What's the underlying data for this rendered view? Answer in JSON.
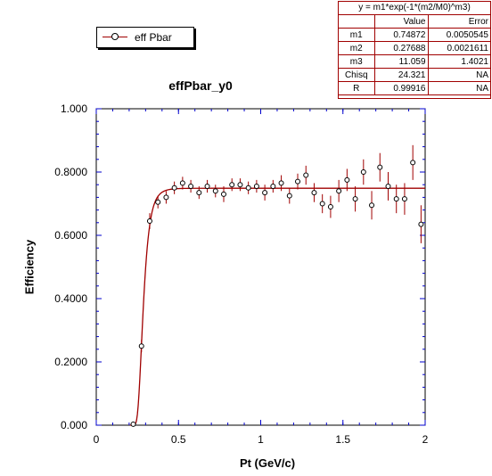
{
  "legend": {
    "label": "eff Pbar"
  },
  "fit": {
    "formula": "y =  m1*exp(-1*(m2/M0)^m3)",
    "headers": [
      "",
      "Value",
      "Error"
    ],
    "rows": [
      [
        "m1",
        "0.74872",
        "0.0050545"
      ],
      [
        "m2",
        "0.27688",
        "0.0021611"
      ],
      [
        "m3",
        "11.059",
        "1.4021"
      ],
      [
        "Chisq",
        "24.321",
        "NA"
      ],
      [
        "R",
        "0.99916",
        "NA"
      ]
    ],
    "m1": 0.74872,
    "m2": 0.27688,
    "m3": 11.059
  },
  "colors": {
    "fit_line": "#a00000",
    "error_bar": "#a00000",
    "marker": "#000000",
    "axis_ticks": "#0000cc"
  },
  "chart_data": {
    "type": "scatter",
    "title": "effPbar_y0",
    "xlabel": "Pt (GeV/c)",
    "ylabel": "Efficiency",
    "xlim": [
      0,
      2
    ],
    "ylim": [
      0,
      1
    ],
    "xticks": [
      "0",
      "0.5",
      "1",
      "1.5",
      "2"
    ],
    "yticks": [
      "0.000",
      "0.2000",
      "0.4000",
      "0.6000",
      "0.8000",
      "1.000"
    ],
    "grid": false,
    "legend_position": "top-left",
    "series": [
      {
        "name": "eff Pbar",
        "x": [
          0.225,
          0.275,
          0.325,
          0.375,
          0.425,
          0.475,
          0.525,
          0.575,
          0.625,
          0.675,
          0.725,
          0.775,
          0.825,
          0.875,
          0.925,
          0.975,
          1.025,
          1.075,
          1.125,
          1.175,
          1.225,
          1.275,
          1.325,
          1.375,
          1.425,
          1.475,
          1.525,
          1.575,
          1.625,
          1.675,
          1.725,
          1.775,
          1.825,
          1.875,
          1.925,
          1.975
        ],
        "y": [
          0.003,
          0.25,
          0.645,
          0.705,
          0.72,
          0.75,
          0.765,
          0.755,
          0.735,
          0.755,
          0.74,
          0.73,
          0.76,
          0.76,
          0.75,
          0.755,
          0.735,
          0.755,
          0.765,
          0.725,
          0.77,
          0.79,
          0.735,
          0.7,
          0.69,
          0.74,
          0.775,
          0.715,
          0.8,
          0.695,
          0.815,
          0.755,
          0.715,
          0.715,
          0.83,
          0.635
        ],
        "yerr": [
          0.002,
          0.02,
          0.025,
          0.02,
          0.02,
          0.02,
          0.02,
          0.02,
          0.02,
          0.02,
          0.02,
          0.025,
          0.02,
          0.02,
          0.02,
          0.02,
          0.025,
          0.02,
          0.025,
          0.025,
          0.025,
          0.03,
          0.03,
          0.03,
          0.035,
          0.035,
          0.035,
          0.04,
          0.04,
          0.045,
          0.045,
          0.045,
          0.045,
          0.05,
          0.055,
          0.06
        ]
      }
    ],
    "fit_curve": {
      "name": "fit",
      "function": "m1*exp(-1*(m2/x)^m3)"
    }
  }
}
